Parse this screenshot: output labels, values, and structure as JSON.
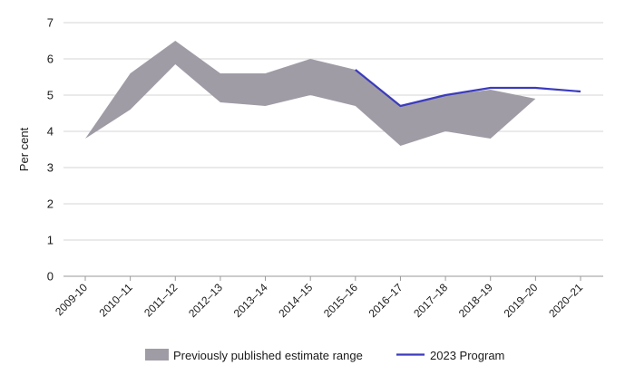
{
  "chart_data": {
    "type": "area",
    "title": "",
    "xlabel": "",
    "ylabel": "Per cent",
    "ylim": [
      0,
      7
    ],
    "yticks": [
      0,
      1,
      2,
      3,
      4,
      5,
      6,
      7
    ],
    "grid": true,
    "legend_position": "bottom",
    "categories": [
      "2009-10",
      "2010–11",
      "2011–12",
      "2012–13",
      "2013–14",
      "2014–15",
      "2015–16",
      "2016–17",
      "2017–18",
      "2018–19",
      "2019–20",
      "2020–21"
    ],
    "series": [
      {
        "name": "Previously published estimate range",
        "kind": "range",
        "color": "#a09ca6",
        "upper": [
          3.8,
          5.6,
          6.5,
          5.6,
          5.6,
          6.0,
          5.7,
          4.7,
          5.0,
          5.15,
          4.9,
          null
        ],
        "lower": [
          3.8,
          4.6,
          5.85,
          4.8,
          4.7,
          5.0,
          4.7,
          3.6,
          4.0,
          3.8,
          4.9,
          null
        ]
      },
      {
        "name": "2023 Program",
        "kind": "line",
        "color": "#3b3bbd",
        "values": [
          null,
          null,
          null,
          null,
          null,
          null,
          5.7,
          4.7,
          5.0,
          5.2,
          5.2,
          5.1
        ]
      }
    ]
  }
}
